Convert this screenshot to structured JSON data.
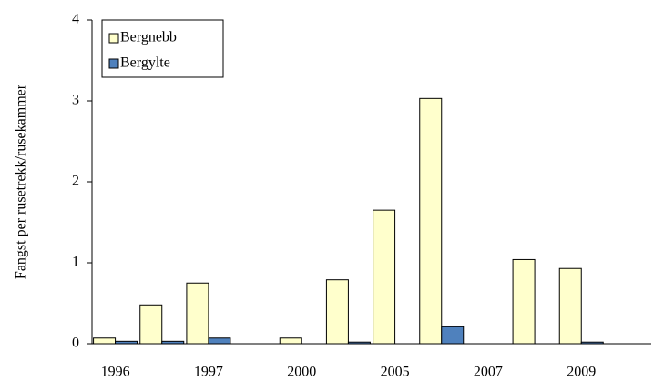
{
  "chart_data": {
    "type": "bar",
    "y_label": "Fangst per rusetrekk/rusekammer",
    "categories": [
      "1996",
      null,
      "1997",
      null,
      "2000",
      null,
      "2005",
      null,
      "2007",
      null,
      "2009",
      null
    ],
    "series": [
      {
        "name": "Bergnebb",
        "color": "#ffffcc",
        "values": [
          0.07,
          0.48,
          0.75,
          null,
          0.07,
          0.79,
          1.65,
          3.03,
          null,
          1.04,
          0.93,
          null
        ]
      },
      {
        "name": "Bergylte",
        "color": "#4f81bd",
        "values": [
          0.03,
          0.03,
          0.07,
          null,
          null,
          0.02,
          null,
          0.21,
          null,
          null,
          0.02,
          null
        ]
      }
    ],
    "ylim": [
      0,
      4
    ],
    "yticks": [
      0,
      1,
      2,
      3,
      4
    ],
    "grid": false,
    "legend": "upper left"
  }
}
